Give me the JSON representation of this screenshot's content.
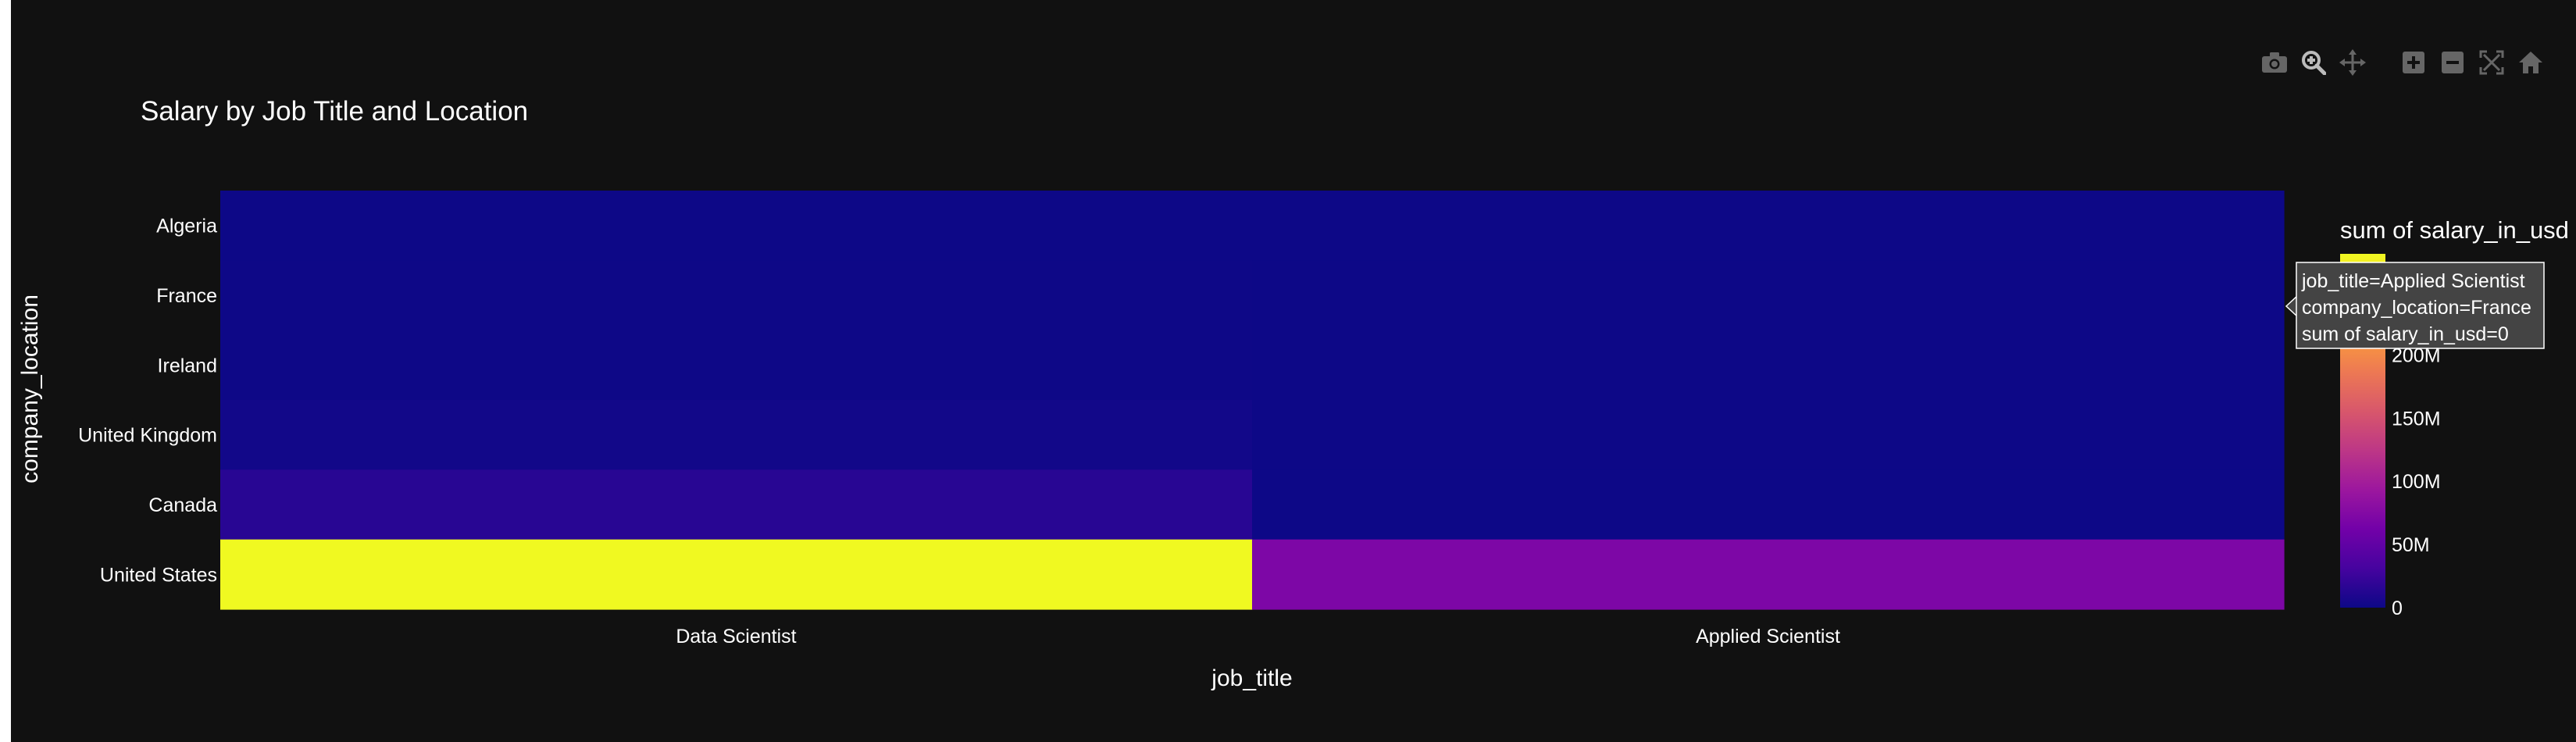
{
  "chart_data": {
    "type": "heatmap",
    "title": "Salary by Job Title and Location",
    "xlabel": "job_title",
    "ylabel": "company_location",
    "x": [
      "Data Scientist",
      "Applied Scientist"
    ],
    "y": [
      "Algeria",
      "France",
      "Ireland",
      "United Kingdom",
      "Canada",
      "United States"
    ],
    "z": [
      [
        0.2,
        0
      ],
      [
        0.3,
        0
      ],
      [
        0.5,
        0
      ],
      [
        2.5,
        0
      ],
      [
        15,
        0
      ],
      [
        280,
        70
      ]
    ],
    "colorbar": {
      "title": "sum of salary_in_usd",
      "zmin": 0,
      "zmax": 280,
      "ticks": [
        {
          "value": 0,
          "label": "0"
        },
        {
          "value": 50,
          "label": "50M"
        },
        {
          "value": 100,
          "label": "100M"
        },
        {
          "value": 150,
          "label": "150M"
        },
        {
          "value": 200,
          "label": "200M"
        },
        {
          "value": 250,
          "label": "250M"
        }
      ]
    },
    "colorscale": [
      "#0d0887",
      "#46039f",
      "#7201a8",
      "#9c179e",
      "#bd3786",
      "#d8576b",
      "#ed7953",
      "#fb9f3a",
      "#fdca26",
      "#f0f921"
    ],
    "background": "#111111",
    "tooltip": {
      "lines": [
        "job_title=Applied Scientist",
        "company_location=France",
        "sum of salary_in_usd=0"
      ]
    }
  },
  "modebar": {
    "icons": [
      "camera-icon",
      "zoom-icon",
      "pan-icon",
      "zoom-in-icon",
      "zoom-out-icon",
      "autoscale-icon",
      "reset-home-icon"
    ]
  }
}
